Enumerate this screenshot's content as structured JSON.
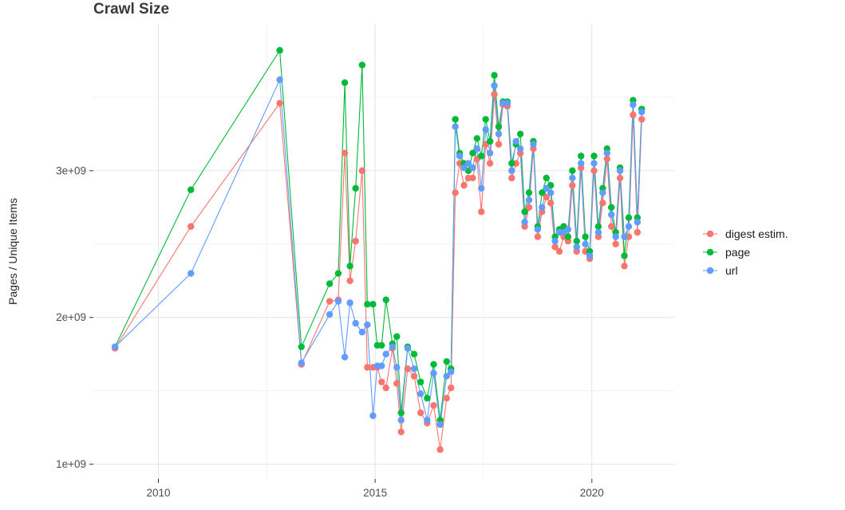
{
  "chart_data": {
    "type": "scatter",
    "title": "Crawl Size",
    "xlabel": "",
    "ylabel": "Pages / Unique Items",
    "grid": true,
    "legend_position": "right",
    "y_unit": 1000000000,
    "xlim": [
      2008.5,
      2021.9
    ],
    "ylim": [
      0.9,
      4.0
    ],
    "x_ticks": [
      {
        "value": 2010,
        "label": "2010"
      },
      {
        "value": 2015,
        "label": "2015"
      },
      {
        "value": 2020,
        "label": "2020"
      }
    ],
    "y_ticks": [
      {
        "value": 1,
        "label": "1e+09"
      },
      {
        "value": 2,
        "label": "2e+09"
      },
      {
        "value": 3,
        "label": "3e+09"
      }
    ],
    "x_minor_ticks": [
      2012.5,
      2017.5
    ],
    "y_minor_ticks": [
      1.5,
      2.5,
      3.5
    ],
    "series": [
      {
        "name": "digest estim.",
        "color": "#F8766D",
        "points": [
          [
            2009.0,
            1.79
          ],
          [
            2010.75,
            2.62
          ],
          [
            2012.8,
            3.46
          ],
          [
            2013.3,
            1.68
          ],
          [
            2013.95,
            2.11
          ],
          [
            2014.15,
            2.12
          ],
          [
            2014.3,
            3.12
          ],
          [
            2014.42,
            2.25
          ],
          [
            2014.55,
            2.52
          ],
          [
            2014.7,
            3.0
          ],
          [
            2014.82,
            1.66
          ],
          [
            2014.95,
            1.66
          ],
          [
            2015.05,
            1.66
          ],
          [
            2015.15,
            1.56
          ],
          [
            2015.25,
            1.52
          ],
          [
            2015.4,
            1.79
          ],
          [
            2015.5,
            1.55
          ],
          [
            2015.6,
            1.22
          ],
          [
            2015.75,
            1.65
          ],
          [
            2015.9,
            1.6
          ],
          [
            2016.05,
            1.35
          ],
          [
            2016.2,
            1.28
          ],
          [
            2016.35,
            1.4
          ],
          [
            2016.5,
            1.1
          ],
          [
            2016.65,
            1.45
          ],
          [
            2016.75,
            1.52
          ],
          [
            2016.85,
            2.85
          ],
          [
            2016.95,
            3.05
          ],
          [
            2017.05,
            2.9
          ],
          [
            2017.15,
            2.95
          ],
          [
            2017.25,
            2.95
          ],
          [
            2017.35,
            3.08
          ],
          [
            2017.45,
            2.72
          ],
          [
            2017.55,
            3.18
          ],
          [
            2017.65,
            3.05
          ],
          [
            2017.75,
            3.52
          ],
          [
            2017.85,
            3.18
          ],
          [
            2017.95,
            3.45
          ],
          [
            2018.05,
            3.44
          ],
          [
            2018.15,
            2.95
          ],
          [
            2018.25,
            3.05
          ],
          [
            2018.35,
            3.12
          ],
          [
            2018.45,
            2.62
          ],
          [
            2018.55,
            2.75
          ],
          [
            2018.65,
            3.15
          ],
          [
            2018.75,
            2.55
          ],
          [
            2018.85,
            2.72
          ],
          [
            2018.95,
            2.82
          ],
          [
            2019.05,
            2.78
          ],
          [
            2019.15,
            2.48
          ],
          [
            2019.25,
            2.45
          ],
          [
            2019.35,
            2.55
          ],
          [
            2019.45,
            2.52
          ],
          [
            2019.55,
            2.9
          ],
          [
            2019.65,
            2.45
          ],
          [
            2019.75,
            3.02
          ],
          [
            2019.85,
            2.45
          ],
          [
            2019.95,
            2.4
          ],
          [
            2020.05,
            3.0
          ],
          [
            2020.15,
            2.55
          ],
          [
            2020.25,
            2.78
          ],
          [
            2020.35,
            3.08
          ],
          [
            2020.45,
            2.62
          ],
          [
            2020.55,
            2.5
          ],
          [
            2020.65,
            2.95
          ],
          [
            2020.75,
            2.35
          ],
          [
            2020.85,
            2.55
          ],
          [
            2020.95,
            3.38
          ],
          [
            2021.05,
            2.58
          ],
          [
            2021.15,
            3.35
          ]
        ]
      },
      {
        "name": "page",
        "color": "#00BA38",
        "points": [
          [
            2009.0,
            1.8
          ],
          [
            2010.75,
            2.87
          ],
          [
            2012.8,
            3.82
          ],
          [
            2013.3,
            1.8
          ],
          [
            2013.95,
            2.23
          ],
          [
            2014.15,
            2.3
          ],
          [
            2014.3,
            3.6
          ],
          [
            2014.42,
            2.35
          ],
          [
            2014.55,
            2.88
          ],
          [
            2014.7,
            3.72
          ],
          [
            2014.82,
            2.09
          ],
          [
            2014.95,
            2.09
          ],
          [
            2015.05,
            1.81
          ],
          [
            2015.15,
            1.81
          ],
          [
            2015.25,
            2.12
          ],
          [
            2015.4,
            1.82
          ],
          [
            2015.5,
            1.87
          ],
          [
            2015.6,
            1.35
          ],
          [
            2015.75,
            1.8
          ],
          [
            2015.9,
            1.75
          ],
          [
            2016.05,
            1.56
          ],
          [
            2016.2,
            1.45
          ],
          [
            2016.35,
            1.68
          ],
          [
            2016.5,
            1.3
          ],
          [
            2016.65,
            1.7
          ],
          [
            2016.75,
            1.65
          ],
          [
            2016.85,
            3.35
          ],
          [
            2016.95,
            3.12
          ],
          [
            2017.05,
            3.05
          ],
          [
            2017.15,
            3.0
          ],
          [
            2017.25,
            3.12
          ],
          [
            2017.35,
            3.22
          ],
          [
            2017.45,
            3.1
          ],
          [
            2017.55,
            3.35
          ],
          [
            2017.65,
            3.2
          ],
          [
            2017.75,
            3.65
          ],
          [
            2017.85,
            3.3
          ],
          [
            2017.95,
            3.47
          ],
          [
            2018.05,
            3.47
          ],
          [
            2018.15,
            3.05
          ],
          [
            2018.25,
            3.18
          ],
          [
            2018.35,
            3.25
          ],
          [
            2018.45,
            2.72
          ],
          [
            2018.55,
            2.85
          ],
          [
            2018.65,
            3.2
          ],
          [
            2018.75,
            2.62
          ],
          [
            2018.85,
            2.85
          ],
          [
            2018.95,
            2.95
          ],
          [
            2019.05,
            2.9
          ],
          [
            2019.15,
            2.55
          ],
          [
            2019.25,
            2.6
          ],
          [
            2019.35,
            2.62
          ],
          [
            2019.45,
            2.55
          ],
          [
            2019.55,
            3.0
          ],
          [
            2019.65,
            2.52
          ],
          [
            2019.75,
            3.1
          ],
          [
            2019.85,
            2.55
          ],
          [
            2019.95,
            2.45
          ],
          [
            2020.05,
            3.1
          ],
          [
            2020.15,
            2.62
          ],
          [
            2020.25,
            2.88
          ],
          [
            2020.35,
            3.15
          ],
          [
            2020.45,
            2.75
          ],
          [
            2020.55,
            2.58
          ],
          [
            2020.65,
            3.02
          ],
          [
            2020.75,
            2.42
          ],
          [
            2020.85,
            2.68
          ],
          [
            2020.95,
            3.48
          ],
          [
            2021.05,
            2.68
          ],
          [
            2021.15,
            3.42
          ]
        ]
      },
      {
        "name": "url",
        "color": "#619CFF",
        "points": [
          [
            2009.0,
            1.8
          ],
          [
            2010.75,
            2.3
          ],
          [
            2012.8,
            3.62
          ],
          [
            2013.3,
            1.69
          ],
          [
            2013.95,
            2.02
          ],
          [
            2014.15,
            2.11
          ],
          [
            2014.3,
            1.73
          ],
          [
            2014.42,
            2.1
          ],
          [
            2014.55,
            1.96
          ],
          [
            2014.7,
            1.9
          ],
          [
            2014.82,
            1.95
          ],
          [
            2014.95,
            1.33
          ],
          [
            2015.05,
            1.67
          ],
          [
            2015.15,
            1.67
          ],
          [
            2015.25,
            1.75
          ],
          [
            2015.4,
            1.8
          ],
          [
            2015.5,
            1.66
          ],
          [
            2015.6,
            1.3
          ],
          [
            2015.75,
            1.79
          ],
          [
            2015.9,
            1.65
          ],
          [
            2016.05,
            1.48
          ],
          [
            2016.2,
            1.3
          ],
          [
            2016.35,
            1.62
          ],
          [
            2016.5,
            1.27
          ],
          [
            2016.65,
            1.6
          ],
          [
            2016.75,
            1.63
          ],
          [
            2016.85,
            3.3
          ],
          [
            2016.95,
            3.1
          ],
          [
            2017.05,
            3.02
          ],
          [
            2017.15,
            3.05
          ],
          [
            2017.25,
            3.02
          ],
          [
            2017.35,
            3.15
          ],
          [
            2017.45,
            2.88
          ],
          [
            2017.55,
            3.28
          ],
          [
            2017.65,
            3.12
          ],
          [
            2017.75,
            3.58
          ],
          [
            2017.85,
            3.25
          ],
          [
            2017.95,
            3.46
          ],
          [
            2018.05,
            3.46
          ],
          [
            2018.15,
            3.0
          ],
          [
            2018.25,
            3.2
          ],
          [
            2018.35,
            3.15
          ],
          [
            2018.45,
            2.65
          ],
          [
            2018.55,
            2.8
          ],
          [
            2018.65,
            3.18
          ],
          [
            2018.75,
            2.6
          ],
          [
            2018.85,
            2.75
          ],
          [
            2018.95,
            2.88
          ],
          [
            2019.05,
            2.85
          ],
          [
            2019.15,
            2.52
          ],
          [
            2019.25,
            2.58
          ],
          [
            2019.35,
            2.58
          ],
          [
            2019.45,
            2.6
          ],
          [
            2019.55,
            2.95
          ],
          [
            2019.65,
            2.48
          ],
          [
            2019.75,
            3.05
          ],
          [
            2019.85,
            2.5
          ],
          [
            2019.95,
            2.42
          ],
          [
            2020.05,
            3.05
          ],
          [
            2020.15,
            2.58
          ],
          [
            2020.25,
            2.85
          ],
          [
            2020.35,
            3.12
          ],
          [
            2020.45,
            2.7
          ],
          [
            2020.55,
            2.55
          ],
          [
            2020.65,
            3.0
          ],
          [
            2020.75,
            2.55
          ],
          [
            2020.85,
            2.62
          ],
          [
            2020.95,
            3.45
          ],
          [
            2021.05,
            2.65
          ],
          [
            2021.15,
            3.4
          ]
        ]
      }
    ],
    "style": {
      "grid_major_color": "#E4E4E4",
      "grid_minor_color": "#F3F3F3",
      "tick_color": "#333333",
      "tick_label_color": "#4D4D4D"
    }
  }
}
